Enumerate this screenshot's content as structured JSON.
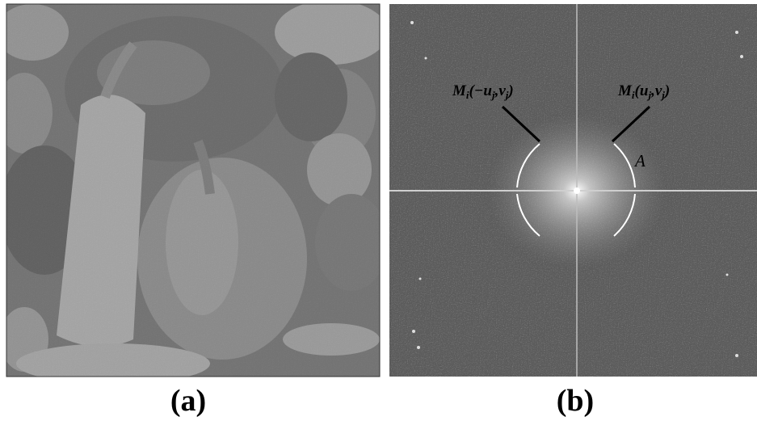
{
  "panels": [
    {
      "label": "(a)"
    },
    {
      "label": "(b)",
      "annotations": [
        {
          "parts": [
            "M",
            "i",
            "(−u",
            "j",
            ",v",
            "j",
            ")"
          ]
        },
        {
          "parts": [
            "M",
            "i",
            "(u",
            "j",
            ",v",
            "j",
            ")"
          ]
        },
        {
          "parts": [
            "A"
          ]
        }
      ]
    }
  ]
}
